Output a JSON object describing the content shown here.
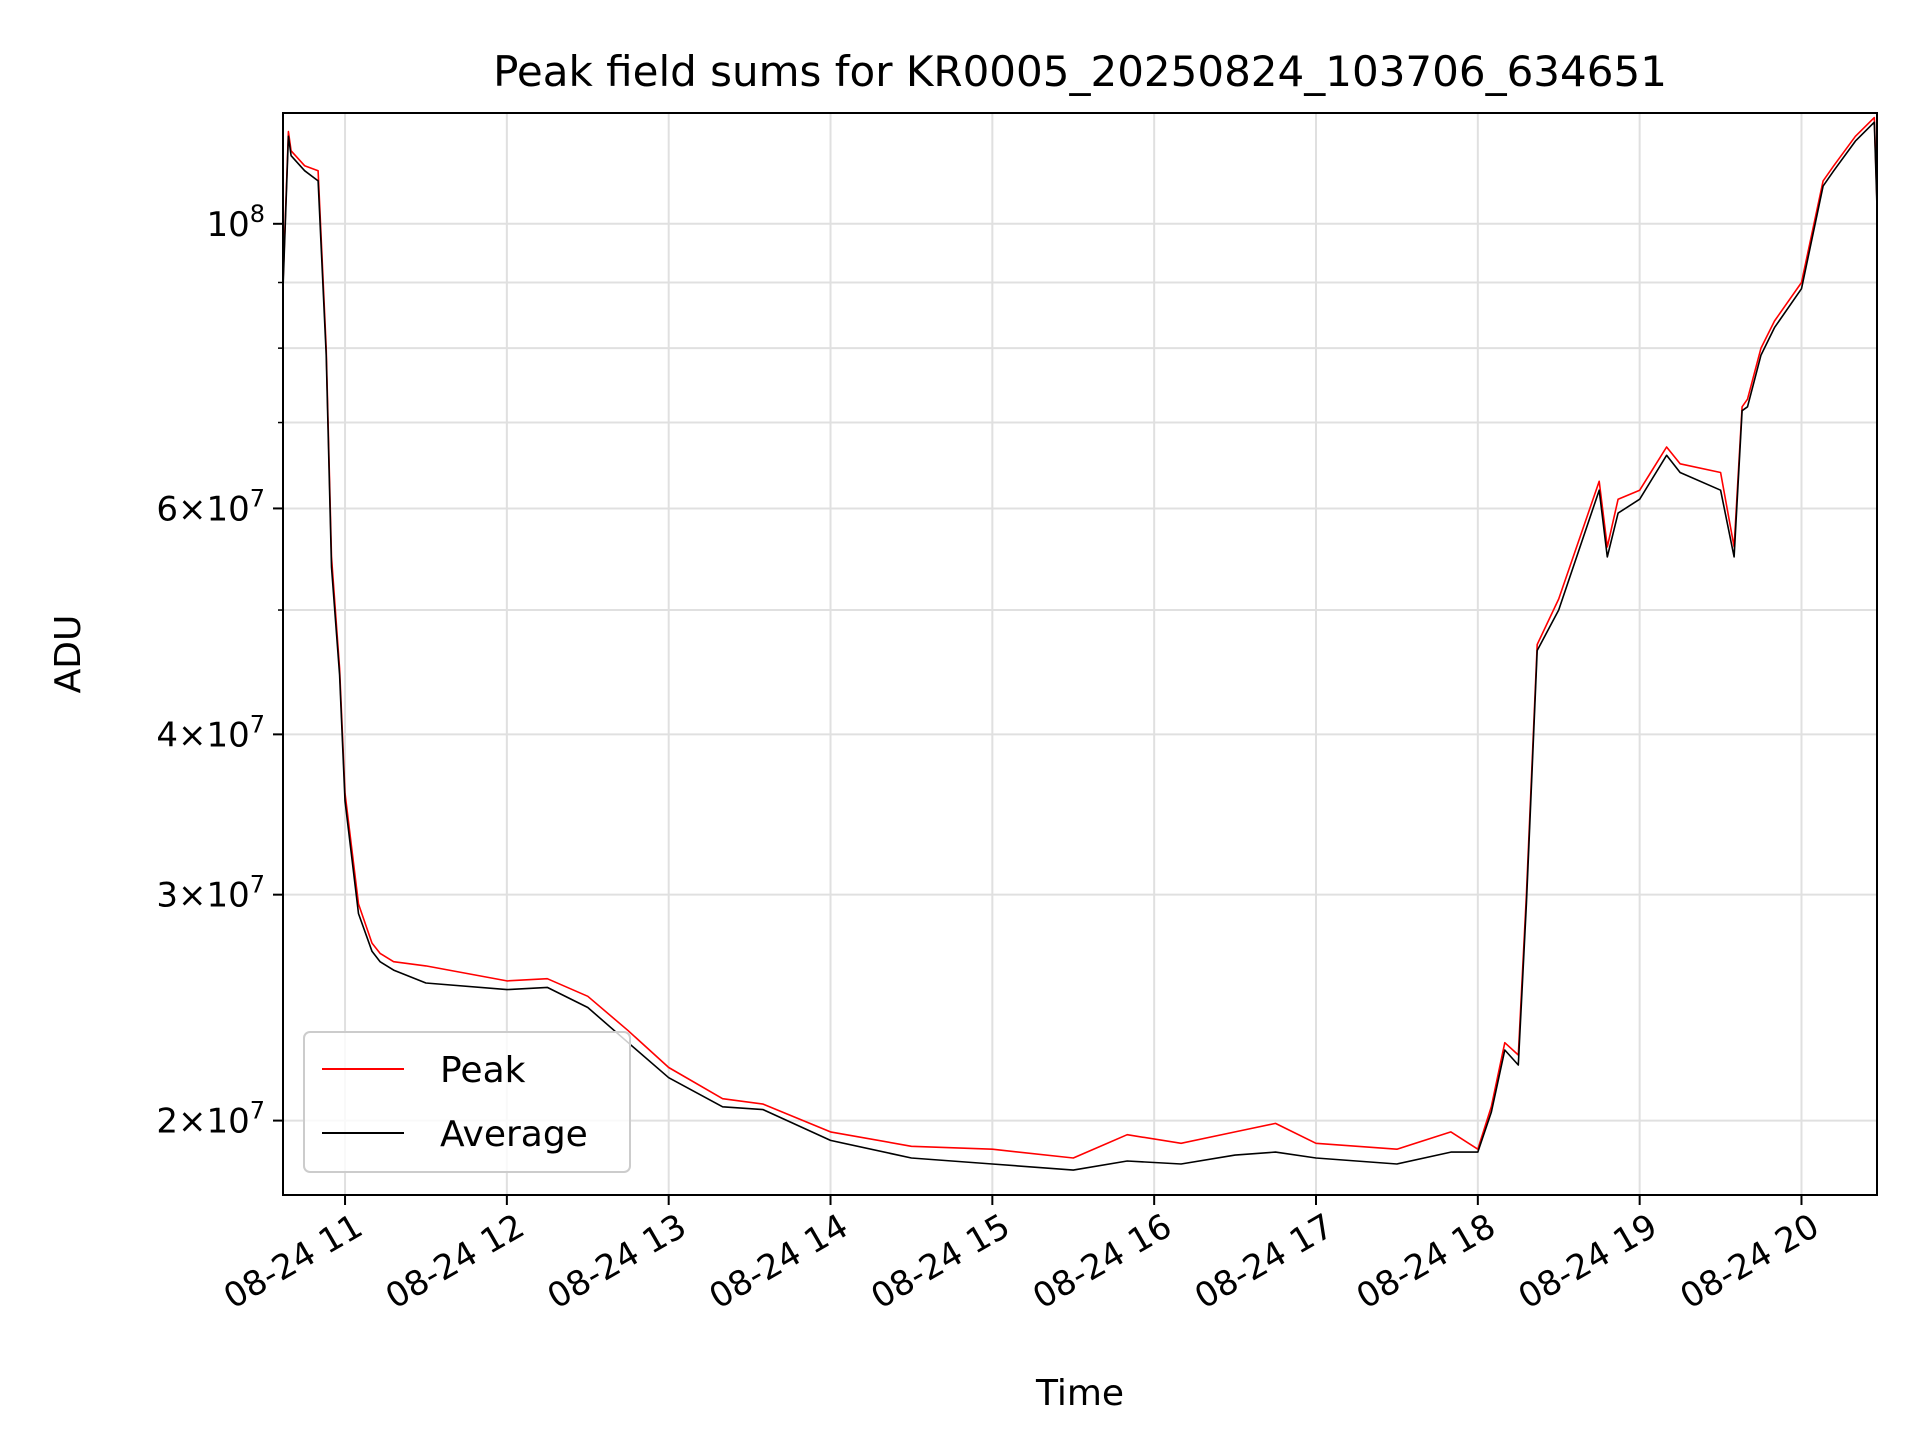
{
  "chart_data": {
    "type": "line",
    "title": "Peak field sums for KR0005_20250824_103706_634651",
    "xlabel": "Time",
    "ylabel": "ADU",
    "y_scale": "log",
    "ylim": [
      17500000,
      122000000
    ],
    "xlim": [
      "2025-08-24 10:37",
      "2025-08-24 20:28"
    ],
    "grid": true,
    "legend_position": "lower-left",
    "x_ticks": [
      "08-24 11",
      "08-24 12",
      "08-24 13",
      "08-24 14",
      "08-24 15",
      "08-24 16",
      "08-24 17",
      "08-24 18",
      "08-24 19",
      "08-24 20"
    ],
    "y_ticks": [
      {
        "value": 100000000,
        "base": "10",
        "exp": "8"
      },
      {
        "value": 60000000,
        "mant": "6×",
        "base": "10",
        "exp": "7"
      },
      {
        "value": 40000000,
        "mant": "4×",
        "base": "10",
        "exp": "7"
      },
      {
        "value": 30000000,
        "mant": "3×",
        "base": "10",
        "exp": "7"
      },
      {
        "value": 20000000,
        "mant": "2×",
        "base": "10",
        "exp": "7"
      }
    ],
    "y_minor_ticks": [
      50000000,
      70000000,
      80000000,
      90000000
    ],
    "colors": {
      "Peak": "#ff0000",
      "Average": "#000000"
    },
    "series": [
      {
        "name": "Peak",
        "color": "#ff0000",
        "x": [
          "2025-08-24 10:37",
          "2025-08-24 10:39",
          "2025-08-24 10:40",
          "2025-08-24 10:45",
          "2025-08-24 10:50",
          "2025-08-24 10:53",
          "2025-08-24 10:55",
          "2025-08-24 10:58",
          "2025-08-24 11:00",
          "2025-08-24 11:05",
          "2025-08-24 11:10",
          "2025-08-24 11:13",
          "2025-08-24 11:18",
          "2025-08-24 11:30",
          "2025-08-24 12:00",
          "2025-08-24 12:15",
          "2025-08-24 12:30",
          "2025-08-24 12:45",
          "2025-08-24 13:00",
          "2025-08-24 13:20",
          "2025-08-24 13:35",
          "2025-08-24 14:00",
          "2025-08-24 14:30",
          "2025-08-24 15:00",
          "2025-08-24 15:30",
          "2025-08-24 15:50",
          "2025-08-24 16:10",
          "2025-08-24 16:30",
          "2025-08-24 16:45",
          "2025-08-24 17:00",
          "2025-08-24 17:30",
          "2025-08-24 17:50",
          "2025-08-24 18:00",
          "2025-08-24 18:05",
          "2025-08-24 18:10",
          "2025-08-24 18:15",
          "2025-08-24 18:18",
          "2025-08-24 18:22",
          "2025-08-24 18:30",
          "2025-08-24 18:45",
          "2025-08-24 18:48",
          "2025-08-24 18:52",
          "2025-08-24 19:00",
          "2025-08-24 19:10",
          "2025-08-24 19:15",
          "2025-08-24 19:30",
          "2025-08-24 19:35",
          "2025-08-24 19:38",
          "2025-08-24 19:40",
          "2025-08-24 19:45",
          "2025-08-24 19:50",
          "2025-08-24 20:00",
          "2025-08-24 20:08",
          "2025-08-24 20:12",
          "2025-08-24 20:20",
          "2025-08-24 20:27",
          "2025-08-24 20:28"
        ],
        "values": [
          90000000,
          118000000,
          114000000,
          111000000,
          110000000,
          80000000,
          55000000,
          45000000,
          36000000,
          29500000,
          27500000,
          27000000,
          26600000,
          26400000,
          25700000,
          25800000,
          25000000,
          23500000,
          22000000,
          20800000,
          20600000,
          19600000,
          19100000,
          19000000,
          18700000,
          19500000,
          19200000,
          19600000,
          19900000,
          19200000,
          19000000,
          19600000,
          19000000,
          20500000,
          23000000,
          22500000,
          30000000,
          47000000,
          51000000,
          63000000,
          56000000,
          61000000,
          62000000,
          67000000,
          65000000,
          64000000,
          56000000,
          72000000,
          73000000,
          80000000,
          84000000,
          90000000,
          108000000,
          111000000,
          117000000,
          121000000,
          104000000
        ]
      },
      {
        "name": "Average",
        "color": "#000000",
        "x": [
          "2025-08-24 10:37",
          "2025-08-24 10:39",
          "2025-08-24 10:40",
          "2025-08-24 10:45",
          "2025-08-24 10:50",
          "2025-08-24 10:53",
          "2025-08-24 10:55",
          "2025-08-24 10:58",
          "2025-08-24 11:00",
          "2025-08-24 11:05",
          "2025-08-24 11:10",
          "2025-08-24 11:13",
          "2025-08-24 11:18",
          "2025-08-24 11:30",
          "2025-08-24 12:00",
          "2025-08-24 12:15",
          "2025-08-24 12:30",
          "2025-08-24 12:45",
          "2025-08-24 13:00",
          "2025-08-24 13:20",
          "2025-08-24 13:35",
          "2025-08-24 14:00",
          "2025-08-24 14:30",
          "2025-08-24 15:00",
          "2025-08-24 15:30",
          "2025-08-24 15:50",
          "2025-08-24 16:10",
          "2025-08-24 16:30",
          "2025-08-24 16:45",
          "2025-08-24 17:00",
          "2025-08-24 17:30",
          "2025-08-24 17:50",
          "2025-08-24 18:00",
          "2025-08-24 18:05",
          "2025-08-24 18:10",
          "2025-08-24 18:15",
          "2025-08-24 18:18",
          "2025-08-24 18:22",
          "2025-08-24 18:30",
          "2025-08-24 18:45",
          "2025-08-24 18:48",
          "2025-08-24 18:52",
          "2025-08-24 19:00",
          "2025-08-24 19:10",
          "2025-08-24 19:15",
          "2025-08-24 19:30",
          "2025-08-24 19:35",
          "2025-08-24 19:38",
          "2025-08-24 19:40",
          "2025-08-24 19:45",
          "2025-08-24 19:50",
          "2025-08-24 20:00",
          "2025-08-24 20:08",
          "2025-08-24 20:12",
          "2025-08-24 20:20",
          "2025-08-24 20:27",
          "2025-08-24 20:28"
        ],
        "values": [
          89000000,
          117000000,
          113000000,
          110000000,
          108000000,
          79000000,
          54000000,
          44500000,
          35500000,
          29000000,
          27100000,
          26600000,
          26200000,
          25600000,
          25300000,
          25400000,
          24500000,
          23000000,
          21600000,
          20500000,
          20400000,
          19300000,
          18700000,
          18500000,
          18300000,
          18600000,
          18500000,
          18800000,
          18900000,
          18700000,
          18500000,
          18900000,
          18900000,
          20300000,
          22700000,
          22100000,
          29500000,
          46500000,
          50000000,
          62000000,
          55000000,
          59500000,
          61000000,
          66000000,
          64000000,
          62000000,
          55000000,
          71500000,
          72000000,
          79000000,
          83000000,
          89000000,
          107000000,
          110000000,
          116000000,
          120000000,
          103000000
        ]
      }
    ]
  }
}
